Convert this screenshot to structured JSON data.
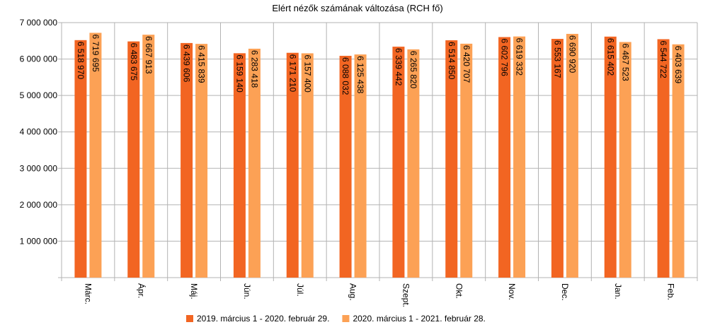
{
  "chart_data": {
    "type": "bar",
    "title": "Elért nézők számának változása (RCH fő)",
    "categories": [
      "Márc.",
      "Ápr.",
      "Máj.",
      "Jún.",
      "Júl.",
      "Aug.",
      "Szept.",
      "Okt.",
      "Nov.",
      "Dec.",
      "Jan.",
      "Feb."
    ],
    "series": [
      {
        "name": "2019. március 1 - 2020. február 29.",
        "color": "#f26522",
        "values": [
          6518970,
          6483675,
          6439606,
          6159140,
          6171210,
          6088032,
          6339442,
          6514850,
          6602796,
          6553167,
          6615402,
          6544722
        ],
        "value_labels": [
          "6 518 970",
          "6 483 675",
          "6 439 606",
          "6 159 140",
          "6 171 210",
          "6 088 032",
          "6 339 442",
          "6 514 850",
          "6 602 796",
          "6 553 167",
          "6 615 402",
          "6 544 722"
        ]
      },
      {
        "name": "2020. március 1 - 2021. február 28.",
        "color": "#fca155",
        "values": [
          6719695,
          6667913,
          6415839,
          6283418,
          6157400,
          6125438,
          6265820,
          6420707,
          6619332,
          6690920,
          6467523,
          6403639
        ],
        "value_labels": [
          "6 719 695",
          "6 667 913",
          "6 415 839",
          "6 283 418",
          "6 157 400",
          "6 125 438",
          "6 265 820",
          "6 420 707",
          "6 619 332",
          "6 690 920",
          "6 467 523",
          "6 403 639"
        ]
      }
    ],
    "ylim": [
      0,
      7000000
    ],
    "yticks": [
      {
        "value": 1000000,
        "label": "1 000 000"
      },
      {
        "value": 2000000,
        "label": "2 000 000"
      },
      {
        "value": 3000000,
        "label": "3 000 000"
      },
      {
        "value": 4000000,
        "label": "4 000 000"
      },
      {
        "value": 5000000,
        "label": "5 000 000"
      },
      {
        "value": 6000000,
        "label": "6 000 000"
      },
      {
        "value": 7000000,
        "label": "7 000 000"
      }
    ],
    "grid": true,
    "legend": "bottom"
  }
}
